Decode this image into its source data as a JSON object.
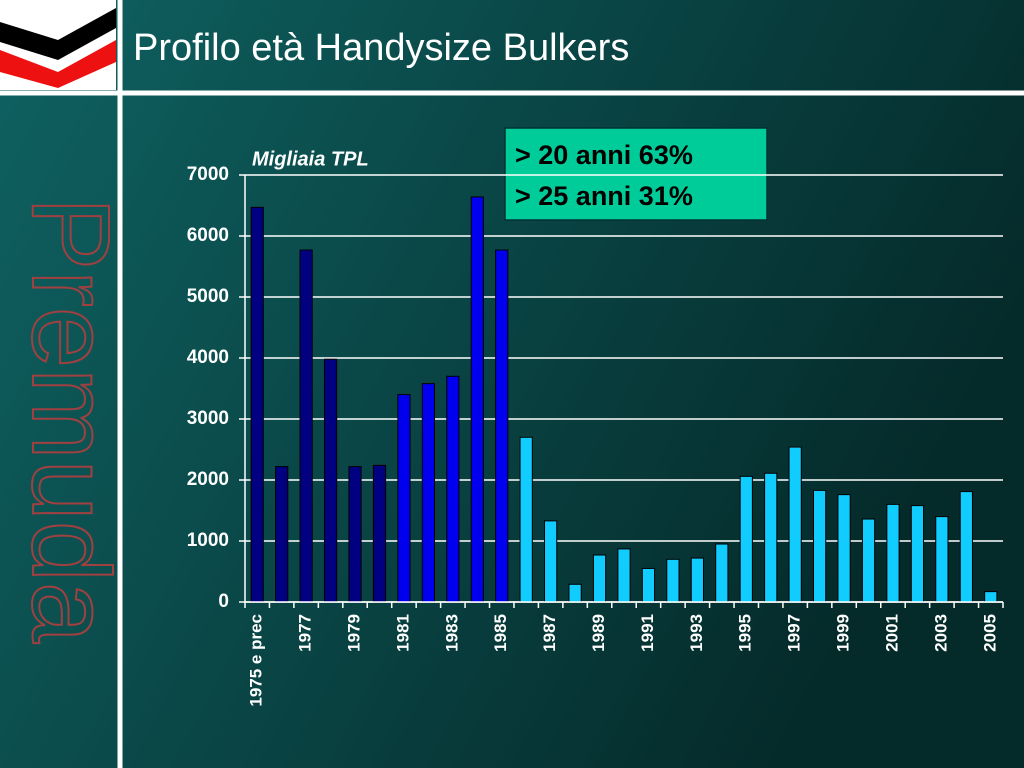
{
  "title": "Profilo età Handysize Bulkers",
  "watermark": "Premuda",
  "chart_data": {
    "type": "bar",
    "unit_label": "Migliaia TPL",
    "annotations": [
      "> 20 anni  63%",
      "> 25 anni  31%"
    ],
    "categories": [
      "1975 e prec",
      null,
      "1977",
      null,
      "1979",
      null,
      "1981",
      null,
      "1983",
      null,
      "1985",
      null,
      "1987",
      null,
      "1989",
      null,
      "1991",
      null,
      "1993",
      null,
      "1995",
      null,
      "1997",
      null,
      "1999",
      null,
      "2001",
      null,
      "2003",
      null,
      "2005"
    ],
    "values": [
      6470,
      2220,
      5770,
      3980,
      2220,
      2240,
      3400,
      3580,
      3700,
      6640,
      5770,
      2700,
      1330,
      290,
      770,
      870,
      550,
      700,
      720,
      950,
      2060,
      2110,
      2540,
      1830,
      1760,
      1360,
      1600,
      1580,
      1400,
      1810,
      170
    ],
    "colors": [
      "#000080",
      "#000080",
      "#000080",
      "#000080",
      "#000080",
      "#000080",
      "#0000ee",
      "#0000ee",
      "#0000ee",
      "#0000ee",
      "#0000ee",
      "#11ccff",
      "#11ccff",
      "#11ccff",
      "#11ccff",
      "#11ccff",
      "#11ccff",
      "#11ccff",
      "#11ccff",
      "#11ccff",
      "#11ccff",
      "#11ccff",
      "#11ccff",
      "#11ccff",
      "#11ccff",
      "#11ccff",
      "#11ccff",
      "#11ccff",
      "#11ccff",
      "#11ccff",
      "#11ccff"
    ],
    "ylim": [
      0,
      7000
    ],
    "yticks": [
      0,
      1000,
      2000,
      3000,
      4000,
      5000,
      6000,
      7000
    ],
    "grid": true
  }
}
